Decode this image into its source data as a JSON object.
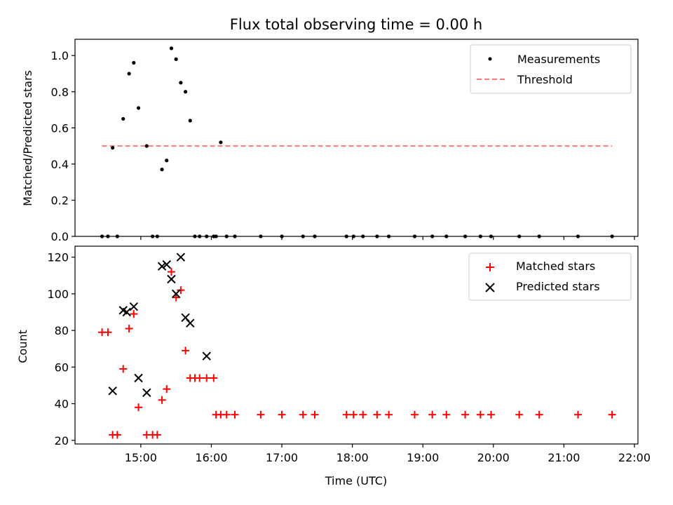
{
  "title": "Flux total observing time = 0.00 h",
  "colors": {
    "measurement": "#000000",
    "threshold": "#ff7777",
    "matched": "#ff0000",
    "predicted": "#000000"
  },
  "chart_data": [
    {
      "type": "scatter",
      "ylabel": "Matched/Predicted stars",
      "xlabel": "",
      "xlim": [
        "14:04",
        "22:03"
      ],
      "ylim": [
        0,
        1.09
      ],
      "yticks": [
        0.0,
        0.2,
        0.4,
        0.6,
        0.8,
        1.0
      ],
      "ytick_labels": [
        "0.0",
        "0.2",
        "0.4",
        "0.6",
        "0.8",
        "1.0"
      ],
      "legend_position": "upper right",
      "grid": false,
      "series": [
        {
          "name": "Measurements",
          "kind": "scatter",
          "marker": "dot",
          "x": [
            "14:27",
            "14:32",
            "14:36",
            "14:40",
            "14:45",
            "14:50",
            "14:54",
            "14:58",
            "15:05",
            "15:10",
            "15:14",
            "15:18",
            "15:22",
            "15:26",
            "15:30",
            "15:34",
            "15:38",
            "15:42",
            "15:46",
            "15:50",
            "15:56",
            "16:02",
            "16:04",
            "16:08",
            "16:13",
            "16:20",
            "16:42",
            "17:00",
            "17:18",
            "17:28",
            "17:55",
            "18:01",
            "18:09",
            "18:21",
            "18:31",
            "18:53",
            "19:08",
            "19:20",
            "19:36",
            "19:49",
            "19:58",
            "20:22",
            "20:39",
            "21:12",
            "21:41"
          ],
          "y": [
            0,
            0,
            0.49,
            0,
            0.65,
            0.9,
            0.96,
            0.71,
            0.5,
            0,
            0,
            0.37,
            0.42,
            1.04,
            0.98,
            0.85,
            0.8,
            0.64,
            0,
            0,
            0,
            0,
            0,
            0.52,
            0,
            0,
            0,
            0,
            0,
            0,
            0,
            0,
            0,
            0,
            0,
            0,
            0,
            0,
            0,
            0,
            0,
            0,
            0,
            0,
            0
          ]
        },
        {
          "name": "Threshold",
          "kind": "line",
          "dash": "dashed",
          "x": [
            "14:27",
            "21:41"
          ],
          "y": [
            0.5,
            0.5
          ]
        }
      ]
    },
    {
      "type": "scatter",
      "ylabel": "Count",
      "xlabel": "Time (UTC)",
      "xlim": [
        "14:04",
        "22:03"
      ],
      "ylim": [
        18,
        126
      ],
      "yticks": [
        20,
        40,
        60,
        80,
        100,
        120
      ],
      "ytick_labels": [
        "20",
        "40",
        "60",
        "80",
        "100",
        "120"
      ],
      "xticks": [
        "15:00",
        "16:00",
        "17:00",
        "18:00",
        "19:00",
        "20:00",
        "21:00",
        "22:00"
      ],
      "xtick_labels": [
        "15:00",
        "16:00",
        "17:00",
        "18:00",
        "19:00",
        "20:00",
        "21:00",
        "22:00"
      ],
      "legend_position": "upper right",
      "grid": false,
      "series": [
        {
          "name": "Matched stars",
          "kind": "scatter",
          "marker": "plus",
          "x": [
            "14:27",
            "14:32",
            "14:36",
            "14:40",
            "14:45",
            "14:50",
            "14:54",
            "14:58",
            "15:05",
            "15:10",
            "15:14",
            "15:18",
            "15:22",
            "15:26",
            "15:30",
            "15:34",
            "15:38",
            "15:42",
            "15:46",
            "15:50",
            "15:56",
            "16:02",
            "16:04",
            "16:08",
            "16:13",
            "16:20",
            "16:42",
            "17:00",
            "17:18",
            "17:28",
            "17:55",
            "18:01",
            "18:09",
            "18:21",
            "18:31",
            "18:53",
            "19:08",
            "19:20",
            "19:36",
            "19:49",
            "19:58",
            "20:22",
            "20:39",
            "21:12",
            "21:41"
          ],
          "y": [
            79,
            79,
            23,
            23,
            59,
            81,
            89,
            38,
            23,
            23,
            23,
            42,
            48,
            112,
            98,
            102,
            69,
            54,
            54,
            54,
            54,
            54,
            34,
            34,
            34,
            34,
            34,
            34,
            34,
            34,
            34,
            34,
            34,
            34,
            34,
            34,
            34,
            34,
            34,
            34,
            34,
            34,
            34,
            34,
            34
          ]
        },
        {
          "name": "Predicted stars",
          "kind": "scatter",
          "marker": "x",
          "x": [
            "14:36",
            "14:45",
            "14:48",
            "14:54",
            "14:58",
            "15:05",
            "15:18",
            "15:22",
            "15:26",
            "15:30",
            "15:34",
            "15:38",
            "15:42",
            "15:56"
          ],
          "y": [
            47,
            91,
            90,
            93,
            54,
            46,
            115,
            116,
            108,
            100,
            120,
            87,
            84,
            66
          ]
        }
      ]
    }
  ]
}
